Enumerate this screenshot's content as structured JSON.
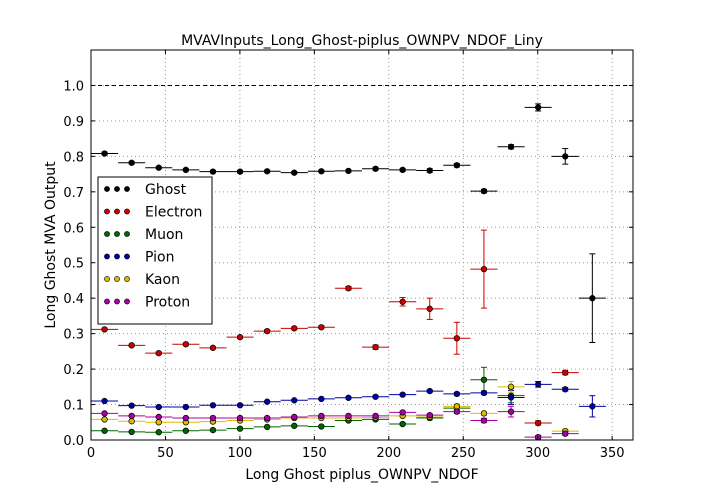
{
  "chart_data": {
    "type": "scatter",
    "title": "MVAVInputs_Long_Ghost-piplus_OWNPV_NDOF_Liny",
    "xlabel": "Long Ghost piplus_OWNPV_NDOF",
    "ylabel": "Long Ghost MVA Output",
    "xlim": [
      0,
      364
    ],
    "ylim": [
      0,
      1.1
    ],
    "xticks": [
      "0",
      "50",
      "100",
      "150",
      "200",
      "250",
      "300",
      "350"
    ],
    "yticks": [
      "0.0",
      "0.1",
      "0.2",
      "0.3",
      "0.4",
      "0.5",
      "0.6",
      "0.7",
      "0.8",
      "0.9",
      "1.0"
    ],
    "grid": true,
    "reference_line_y": 1.0,
    "legend_position": "left",
    "x": [
      9.1,
      27.3,
      45.5,
      63.7,
      81.9,
      100.1,
      118.3,
      136.5,
      154.7,
      172.9,
      191.1,
      209.3,
      227.5,
      245.7,
      263.9,
      282.1,
      300.3,
      318.5,
      336.7
    ],
    "xerr": 9.1,
    "series": [
      {
        "name": "Ghost",
        "color": "#000000",
        "values": [
          0.808,
          0.782,
          0.768,
          0.762,
          0.757,
          0.757,
          0.758,
          0.754,
          0.758,
          0.759,
          0.765,
          0.762,
          0.76,
          0.775,
          0.702,
          0.827,
          0.938,
          0.8,
          0.4
        ],
        "errors": [
          0.004,
          0.003,
          0.003,
          0.003,
          0.003,
          0.003,
          0.003,
          0.003,
          0.003,
          0.003,
          0.004,
          0.004,
          0.005,
          0.005,
          0.005,
          0.006,
          0.01,
          0.022,
          0.125
        ]
      },
      {
        "name": "Electron",
        "color": "#cc0000",
        "values": [
          0.312,
          0.267,
          0.245,
          0.27,
          0.26,
          0.29,
          0.307,
          0.315,
          0.318,
          0.428,
          0.262,
          0.39,
          0.37,
          0.287,
          0.482,
          null,
          0.048,
          0.19,
          null
        ],
        "errors": [
          0.003,
          0.003,
          0.003,
          0.003,
          0.003,
          0.003,
          0.004,
          0.004,
          0.004,
          0.005,
          0.006,
          0.012,
          0.03,
          0.045,
          0.11,
          null,
          0.006,
          0.006,
          null
        ]
      },
      {
        "name": "Muon",
        "color": "#006600",
        "values": [
          0.026,
          0.023,
          0.022,
          0.026,
          0.028,
          0.032,
          0.037,
          0.04,
          0.038,
          0.055,
          0.058,
          0.045,
          0.062,
          0.09,
          0.17,
          0.125,
          null,
          null,
          null
        ],
        "errors": [
          0.002,
          0.002,
          0.002,
          0.002,
          0.002,
          0.002,
          0.002,
          0.002,
          0.002,
          0.003,
          0.003,
          0.004,
          0.005,
          0.01,
          0.035,
          0.02,
          null,
          null,
          null
        ]
      },
      {
        "name": "Pion",
        "color": "#0000aa",
        "values": [
          0.11,
          0.097,
          0.093,
          0.093,
          0.098,
          0.098,
          0.108,
          0.112,
          0.116,
          0.119,
          0.122,
          0.128,
          0.138,
          0.13,
          0.133,
          0.12,
          0.157,
          0.143,
          0.095
        ],
        "errors": [
          0.002,
          0.002,
          0.002,
          0.002,
          0.002,
          0.002,
          0.002,
          0.002,
          0.002,
          0.003,
          0.003,
          0.003,
          0.003,
          0.004,
          0.005,
          0.02,
          0.008,
          0.005,
          0.03
        ]
      },
      {
        "name": "Kaon",
        "color": "#ddbb00",
        "values": [
          0.058,
          0.053,
          0.05,
          0.05,
          0.052,
          0.055,
          0.058,
          0.062,
          0.062,
          0.062,
          0.063,
          0.068,
          0.065,
          0.095,
          0.075,
          0.15,
          null,
          0.025,
          null
        ],
        "errors": [
          0.002,
          0.002,
          0.002,
          0.002,
          0.002,
          0.002,
          0.002,
          0.002,
          0.002,
          0.003,
          0.003,
          0.003,
          0.004,
          0.006,
          0.006,
          0.015,
          null,
          0.006,
          null
        ]
      },
      {
        "name": "Proton",
        "color": "#aa00aa",
        "values": [
          0.075,
          0.068,
          0.065,
          0.062,
          0.062,
          0.062,
          0.062,
          0.065,
          0.068,
          0.068,
          0.068,
          0.078,
          0.07,
          0.08,
          0.055,
          0.08,
          0.008,
          0.018,
          null
        ],
        "errors": [
          0.002,
          0.002,
          0.002,
          0.002,
          0.002,
          0.002,
          0.002,
          0.002,
          0.002,
          0.003,
          0.003,
          0.003,
          0.004,
          0.005,
          0.006,
          0.015,
          0.005,
          0.005,
          null
        ]
      }
    ]
  }
}
